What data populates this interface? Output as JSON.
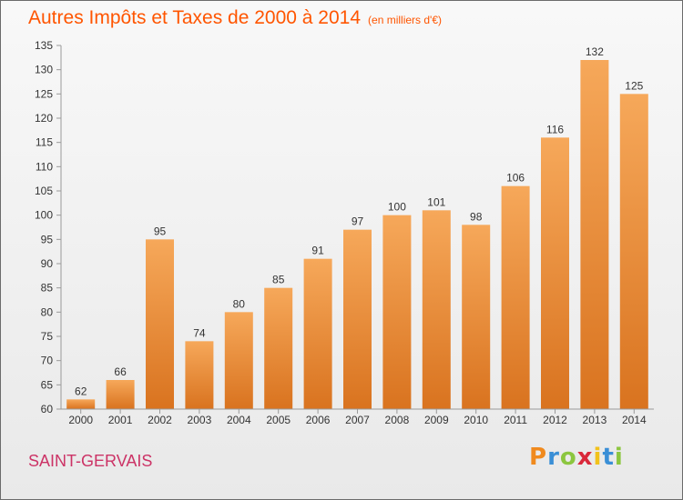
{
  "title": "Autres Impôts et Taxes de 2000 à 2014",
  "subtitle": "(en milliers d'€)",
  "commune": "SAINT-GERVAIS",
  "brand": {
    "letters": [
      "P",
      "r",
      "o",
      "x",
      "i",
      "t",
      "i"
    ],
    "colors": [
      "#f08a1e",
      "#3a8fd6",
      "#8cc63f",
      "#d9283a",
      "#f2c21b",
      "#3a8fd6",
      "#8cc63f"
    ]
  },
  "colors": {
    "title": "#ff5500",
    "commune": "#cc3366",
    "bar_light": "#f6a85a",
    "bar_dark": "#d9731f"
  },
  "chart_data": {
    "type": "bar",
    "title": "Autres Impôts et Taxes de 2000 à 2014",
    "subtitle": "(en milliers d'€)",
    "categories": [
      "2000",
      "2001",
      "2002",
      "2003",
      "2004",
      "2005",
      "2006",
      "2007",
      "2008",
      "2009",
      "2010",
      "2011",
      "2012",
      "2013",
      "2014"
    ],
    "values": [
      62,
      66,
      95,
      74,
      80,
      85,
      91,
      97,
      100,
      101,
      98,
      106,
      116,
      132,
      125
    ],
    "ylim": [
      60,
      135
    ],
    "yticks": [
      60,
      65,
      70,
      75,
      80,
      85,
      90,
      95,
      100,
      105,
      110,
      115,
      120,
      125,
      130,
      135
    ],
    "grid": false,
    "data_labels": true
  }
}
